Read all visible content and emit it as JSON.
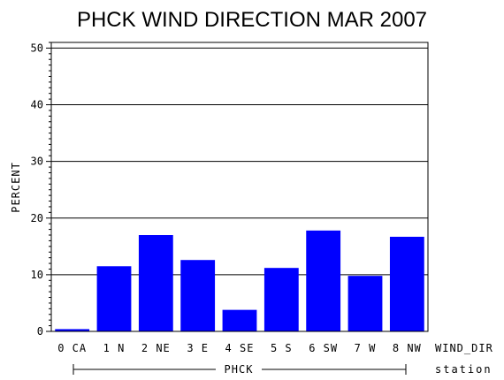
{
  "chart_data": {
    "type": "bar",
    "title": "PHCK WIND DIRECTION MAR 2007",
    "ylabel": "PERCENT",
    "xlabel": "WIND_DIR",
    "group_label": "PHCK",
    "group_axis_label": "station",
    "categories": [
      "0 CA",
      "1 N",
      "2 NE",
      "3 E",
      "4 SE",
      "5 S",
      "6 SW",
      "7 W",
      "8 NW"
    ],
    "values": [
      0.4,
      11.5,
      17.0,
      12.6,
      3.8,
      11.2,
      17.8,
      9.8,
      16.7
    ],
    "ylim": [
      0,
      51
    ],
    "yticks": [
      0,
      10,
      20,
      30,
      40,
      50
    ],
    "grid": true,
    "bar_color": "#0000ff"
  }
}
